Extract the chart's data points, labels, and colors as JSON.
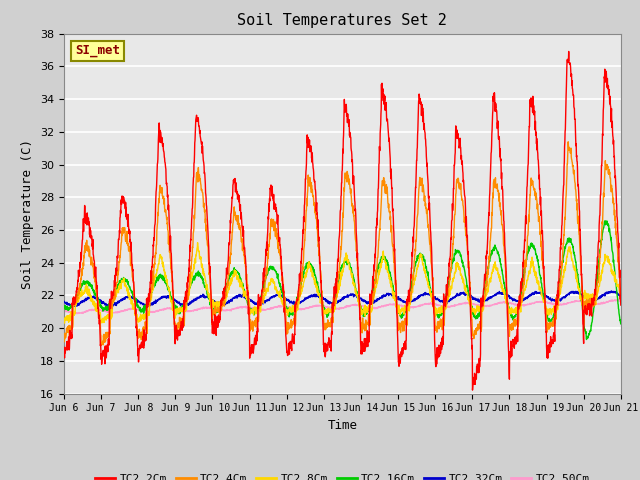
{
  "title": "Soil Temperatures Set 2",
  "xlabel": "Time",
  "ylabel": "Soil Temperature (C)",
  "ylim": [
    16,
    38
  ],
  "yticks": [
    16,
    18,
    20,
    22,
    24,
    26,
    28,
    30,
    32,
    34,
    36,
    38
  ],
  "xtick_labels": [
    "Jun 6",
    "Jun 7",
    "Jun 8",
    "Jun 9",
    "Jun 10",
    "Jun 11",
    "Jun 12",
    "Jun 13",
    "Jun 14",
    "Jun 15",
    "Jun 16",
    "Jun 17",
    "Jun 18",
    "Jun 19",
    "Jun 20",
    "Jun 21"
  ],
  "annotation_text": "SI_met",
  "annotation_color": "#8B0000",
  "annotation_bg": "#FFFF99",
  "series_colors": {
    "TC2_2Cm": "#FF0000",
    "TC2_4Cm": "#FF8C00",
    "TC2_8Cm": "#FFD700",
    "TC2_16Cm": "#00CC00",
    "TC2_32Cm": "#0000CC",
    "TC2_50Cm": "#FF99CC"
  },
  "plot_bg": "#E8E8E8",
  "fig_bg": "#D0D0D0",
  "grid_color": "#FFFFFF",
  "linewidth": 1.0
}
